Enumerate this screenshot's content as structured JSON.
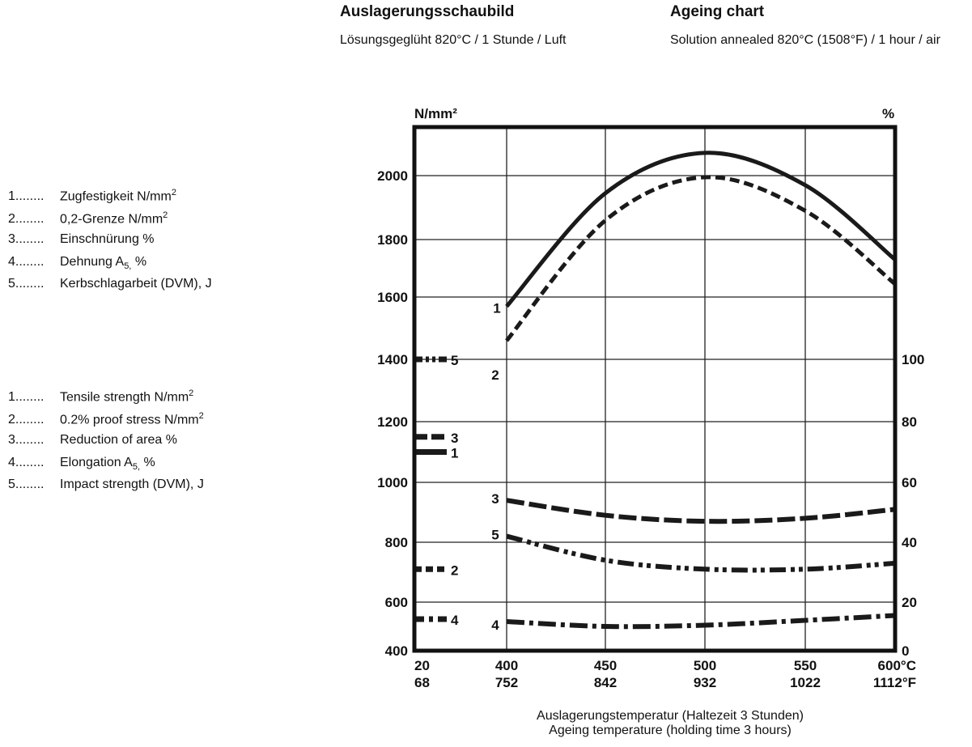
{
  "header": {
    "de_title": "Auslagerungsschaubild",
    "de_subtitle": "Lösungsgeglüht 820°C / 1 Stunde / Luft",
    "en_title": "Ageing  chart",
    "en_subtitle": "Solution annealed 820°C (1508°F) / 1 hour / air"
  },
  "legend_de": [
    {
      "num": "1........",
      "label": "Zugfestigkeit N/mm",
      "sup": "2"
    },
    {
      "num": "2........",
      "label": "0,2-Grenze N/mm",
      "sup": "2"
    },
    {
      "num": "3........",
      "label": "Einschnürung %"
    },
    {
      "num": "4........",
      "label": "Dehnung A",
      "sub": "5,",
      "tail": " %"
    },
    {
      "num": "5........",
      "label": "Kerbschlagarbeit (DVM), J"
    }
  ],
  "legend_en": [
    {
      "num": "1........",
      "label": "Tensile strength N/mm",
      "sup": "2"
    },
    {
      "num": "2........",
      "label": "0.2% proof stress N/mm",
      "sup": "2"
    },
    {
      "num": "3........",
      "label": "Reduction of area %"
    },
    {
      "num": "4........",
      "label": "Elongation A",
      "sub": "5,",
      "tail": " %"
    },
    {
      "num": "5........",
      "label": "Impact strength (DVM), J"
    }
  ],
  "chart_data": {
    "type": "line",
    "xlabel_de": "Auslagerungstemperatur (Haltezeit 3 Stunden)",
    "xlabel_en": "Ageing temperature (holding time 3 hours)",
    "ylabel_left": "N/mm²",
    "ylabel_right": "%",
    "x_ticks_c": [
      "20",
      "400",
      "450",
      "500",
      "550",
      "600°C"
    ],
    "x_ticks_f": [
      "68",
      "752",
      "842",
      "932",
      "1022",
      "1112°F"
    ],
    "y_left_ticks": [
      "400",
      "600",
      "800",
      "1000",
      "1200",
      "1400",
      "1600",
      "1800",
      "2000"
    ],
    "y_right_ticks": [
      "0",
      "20",
      "40",
      "60",
      "80",
      "100"
    ],
    "grid": true,
    "x": [
      400,
      450,
      500,
      550,
      600
    ],
    "series": [
      {
        "id": "1",
        "axis": "left",
        "style": "solid",
        "value_at_20": 1100,
        "values": [
          1570,
          1945,
          2075,
          1970,
          1730
        ]
      },
      {
        "id": "2",
        "axis": "left",
        "style": "dashed",
        "value_at_20": 710,
        "values": [
          1460,
          1860,
          1995,
          1890,
          1645
        ]
      },
      {
        "id": "3",
        "axis": "right",
        "style": "long-dash",
        "value_at_20": 75,
        "values": [
          54,
          49,
          47,
          48,
          51
        ]
      },
      {
        "id": "4",
        "axis": "right",
        "style": "dash-dot",
        "value_at_20": 13,
        "values": [
          12,
          10,
          10.5,
          12.5,
          14.5
        ]
      },
      {
        "id": "5",
        "axis": "right",
        "style": "dash-dot-dot",
        "value_at_20": 100,
        "values": [
          42,
          34,
          31,
          31,
          33
        ]
      }
    ]
  }
}
